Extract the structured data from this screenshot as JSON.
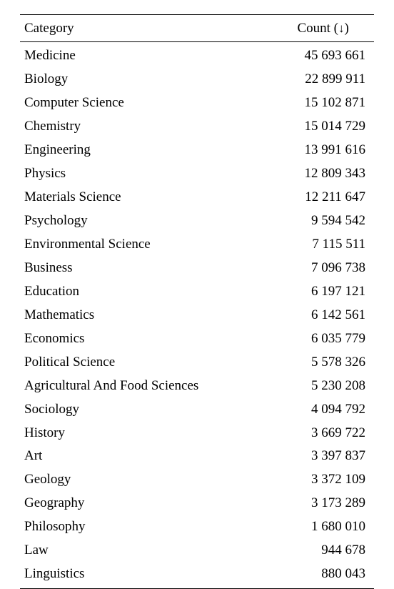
{
  "table": {
    "header_category": "Category",
    "header_count_prefix": "Count (",
    "header_count_arrow": "↓",
    "header_count_suffix": ")",
    "number_group_separator": " ",
    "count_column_digits": 8,
    "rows": [
      {
        "category": "Medicine",
        "count": 45693661
      },
      {
        "category": "Biology",
        "count": 22899911
      },
      {
        "category": "Computer Science",
        "count": 15102871
      },
      {
        "category": "Chemistry",
        "count": 15014729
      },
      {
        "category": "Engineering",
        "count": 13991616
      },
      {
        "category": "Physics",
        "count": 12809343
      },
      {
        "category": "Materials Science",
        "count": 12211647
      },
      {
        "category": "Psychology",
        "count": 9594542
      },
      {
        "category": "Environmental Science",
        "count": 7115511
      },
      {
        "category": "Business",
        "count": 7096738
      },
      {
        "category": "Education",
        "count": 6197121
      },
      {
        "category": "Mathematics",
        "count": 6142561
      },
      {
        "category": "Economics",
        "count": 6035779
      },
      {
        "category": "Political Science",
        "count": 5578326
      },
      {
        "category": "Agricultural And Food Sciences",
        "count": 5230208
      },
      {
        "category": "Sociology",
        "count": 4094792
      },
      {
        "category": "History",
        "count": 3669722
      },
      {
        "category": "Art",
        "count": 3397837
      },
      {
        "category": "Geology",
        "count": 3372109
      },
      {
        "category": "Geography",
        "count": 3173289
      },
      {
        "category": "Philosophy",
        "count": 1680010
      },
      {
        "category": "Law",
        "count": 944678
      },
      {
        "category": "Linguistics",
        "count": 880043
      }
    ]
  },
  "colors": {
    "background": "#ffffff",
    "text": "#000000",
    "rule": "#000000"
  },
  "typography": {
    "font_family": "Times New Roman",
    "font_size_pt": 14
  }
}
